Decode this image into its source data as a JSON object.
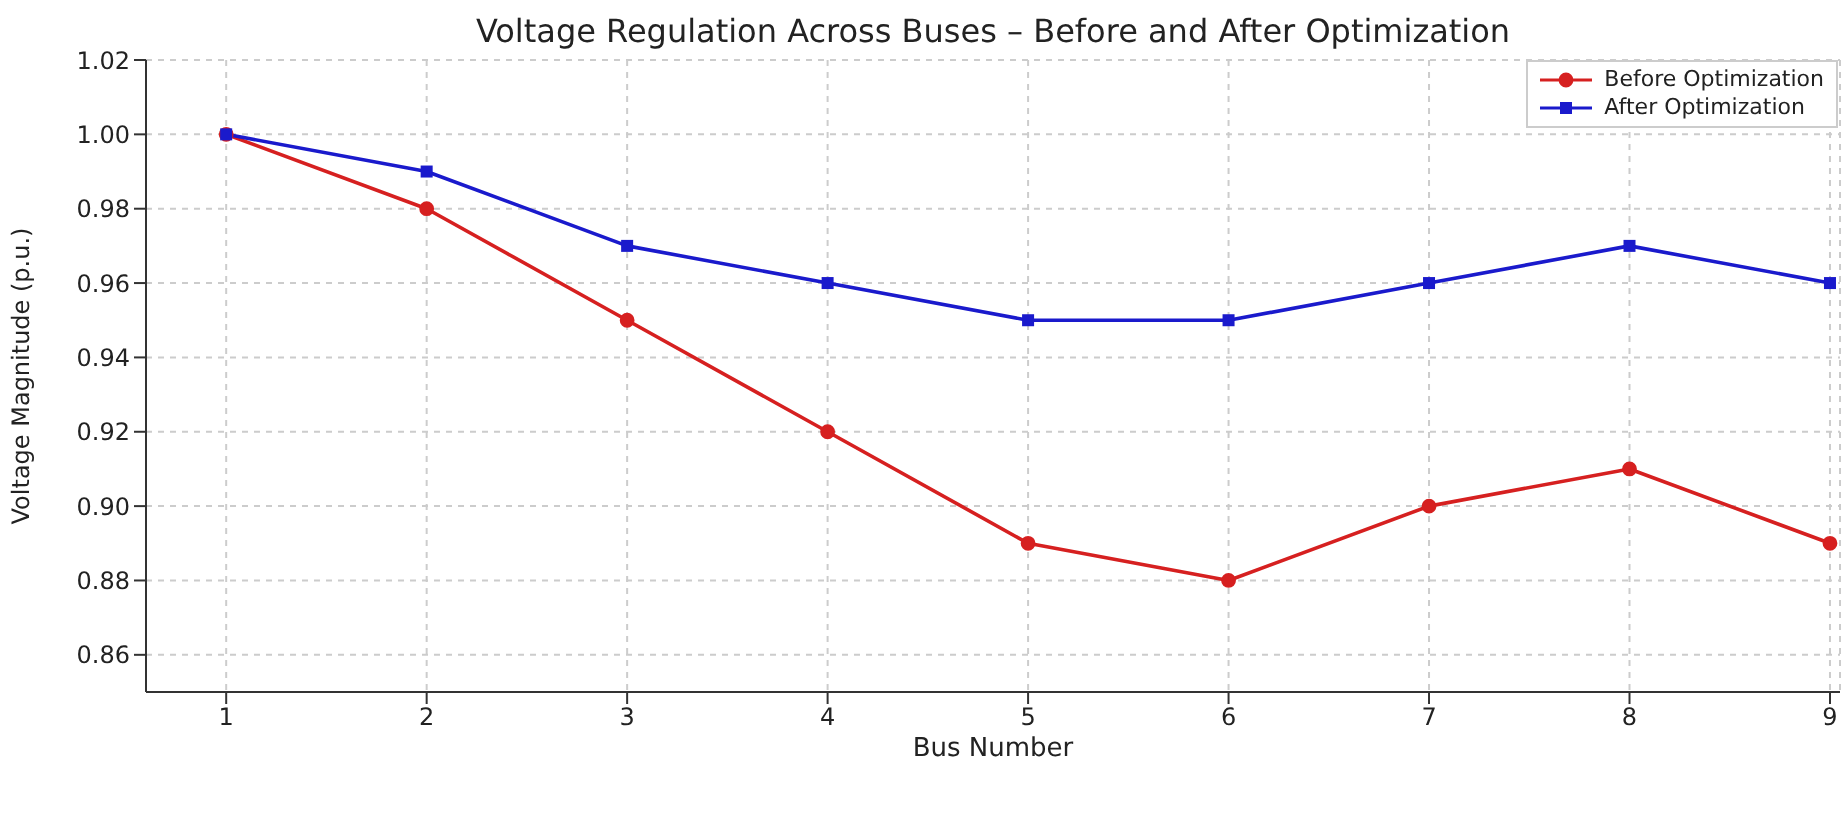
{
  "chart_data": {
    "type": "line",
    "title": "Voltage Regulation Across Buses – Before and After Optimization",
    "xlabel": "Bus Number",
    "ylabel": "Voltage Magnitude (p.u.)",
    "x": [
      1,
      2,
      3,
      4,
      5,
      6,
      7,
      8,
      9
    ],
    "series": [
      {
        "name": "Before Optimization",
        "color": "#d62020",
        "marker": "circle",
        "values": [
          1.0,
          0.98,
          0.95,
          0.92,
          0.89,
          0.88,
          0.9,
          0.91,
          0.89
        ]
      },
      {
        "name": "After Optimization",
        "color": "#1a1acc",
        "marker": "square",
        "values": [
          1.0,
          0.99,
          0.97,
          0.96,
          0.95,
          0.95,
          0.96,
          0.97,
          0.96
        ]
      }
    ],
    "xlim": [
      0.6,
      9.05
    ],
    "xticks": [
      1,
      2,
      3,
      4,
      5,
      6,
      7,
      8,
      9
    ],
    "ylim": [
      0.85,
      1.02
    ],
    "yticks": [
      0.86,
      0.88,
      {
        "value": 0.9,
        "label": "0.90"
      },
      0.92,
      0.94,
      0.96,
      0.98,
      {
        "value": 1.0,
        "label": "1.00"
      },
      1.02
    ],
    "grid": true,
    "legend": "top right",
    "line_style": "solid"
  }
}
